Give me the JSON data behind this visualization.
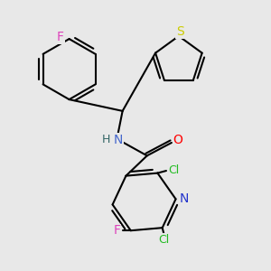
{
  "bg_color": "#e8e8e8",
  "bond_color": "#000000",
  "bond_width": 1.5,
  "atom_colors": {
    "F": "#dd44bb",
    "S": "#cccc00",
    "N_amide": "#4466cc",
    "O": "#ff0000",
    "Cl": "#22bb22",
    "N_pyridine": "#2233cc",
    "H": "#336666"
  },
  "font_size": 9,
  "fig_width": 3.0,
  "fig_height": 3.0,
  "dpi": 100
}
